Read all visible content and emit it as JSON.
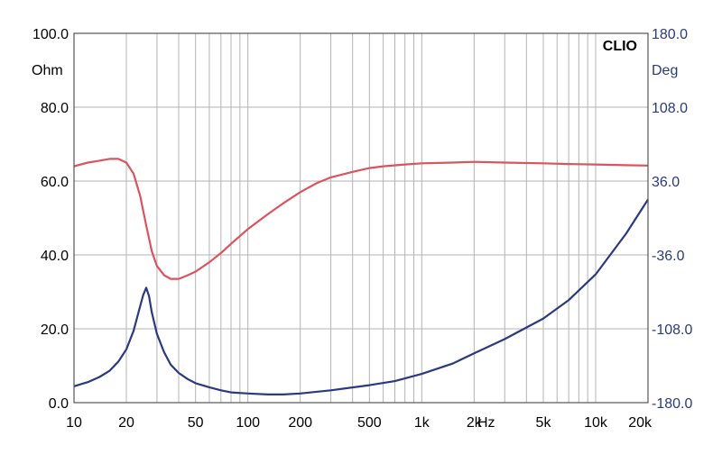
{
  "brand": "CLIO",
  "chart_data": {
    "type": "line",
    "x_scale": "log",
    "grid": true,
    "xlim": [
      10,
      20000
    ],
    "y_left": {
      "unit": "Ohm",
      "ylim": [
        0,
        100
      ],
      "ticks": [
        0,
        20,
        40,
        60,
        80,
        100
      ],
      "tick_labels": [
        "0.0",
        "20.0",
        "40.0",
        "60.0",
        "80.0",
        "100.0"
      ]
    },
    "y_right": {
      "unit": "Deg",
      "ylim": [
        -180,
        180
      ],
      "ticks": [
        -180,
        -108,
        -36,
        36,
        108,
        180
      ],
      "tick_labels": [
        "-180.0",
        "-108.0",
        "-36.0",
        "36.0",
        "108.0",
        "180.0"
      ]
    },
    "x_ticks": [
      10,
      20,
      50,
      100,
      200,
      500,
      1000,
      2000,
      5000,
      10000,
      20000
    ],
    "x_tick_labels": [
      "10",
      "20",
      "50",
      "100",
      "200",
      "500",
      "1k",
      "2k",
      "5k",
      "10k",
      "20k"
    ],
    "x_unit_label": "Hz",
    "series": [
      {
        "color": "#d9545e",
        "axis": "left",
        "x": [
          10,
          12,
          14,
          16,
          18,
          20,
          22,
          24,
          26,
          28,
          30,
          33,
          36,
          40,
          45,
          50,
          60,
          70,
          80,
          100,
          130,
          160,
          200,
          250,
          300,
          400,
          500,
          600,
          800,
          1000,
          1500,
          2000,
          3000,
          5000,
          7000,
          10000,
          15000,
          20000
        ],
        "y": [
          64.0,
          65.0,
          65.5,
          66.0,
          66.0,
          65.0,
          62.0,
          56.0,
          48.0,
          41.0,
          37.0,
          34.5,
          33.5,
          33.5,
          34.5,
          35.5,
          38.0,
          40.5,
          43.0,
          47.0,
          51.0,
          54.0,
          57.0,
          59.5,
          61.0,
          62.5,
          63.5,
          64.0,
          64.5,
          64.8,
          65.0,
          65.2,
          65.0,
          64.8,
          64.6,
          64.5,
          64.3,
          64.2
        ]
      },
      {
        "color": "#2b3a7e",
        "axis": "right",
        "x": [
          10,
          12,
          14,
          16,
          18,
          20,
          22,
          24,
          25,
          26,
          27,
          28,
          30,
          33,
          36,
          40,
          45,
          50,
          60,
          70,
          80,
          100,
          130,
          160,
          200,
          300,
          500,
          700,
          1000,
          1500,
          2000,
          3000,
          5000,
          7000,
          10000,
          15000,
          20000
        ],
        "y": [
          -164,
          -160,
          -155,
          -149,
          -140,
          -128,
          -110,
          -86,
          -75,
          -68,
          -76,
          -92,
          -113,
          -131,
          -143,
          -151,
          -157,
          -161,
          -165,
          -168,
          -170,
          -171,
          -172,
          -172,
          -171,
          -168,
          -163,
          -159,
          -152,
          -142,
          -132,
          -118,
          -98,
          -80,
          -55,
          -15,
          18
        ]
      }
    ]
  }
}
